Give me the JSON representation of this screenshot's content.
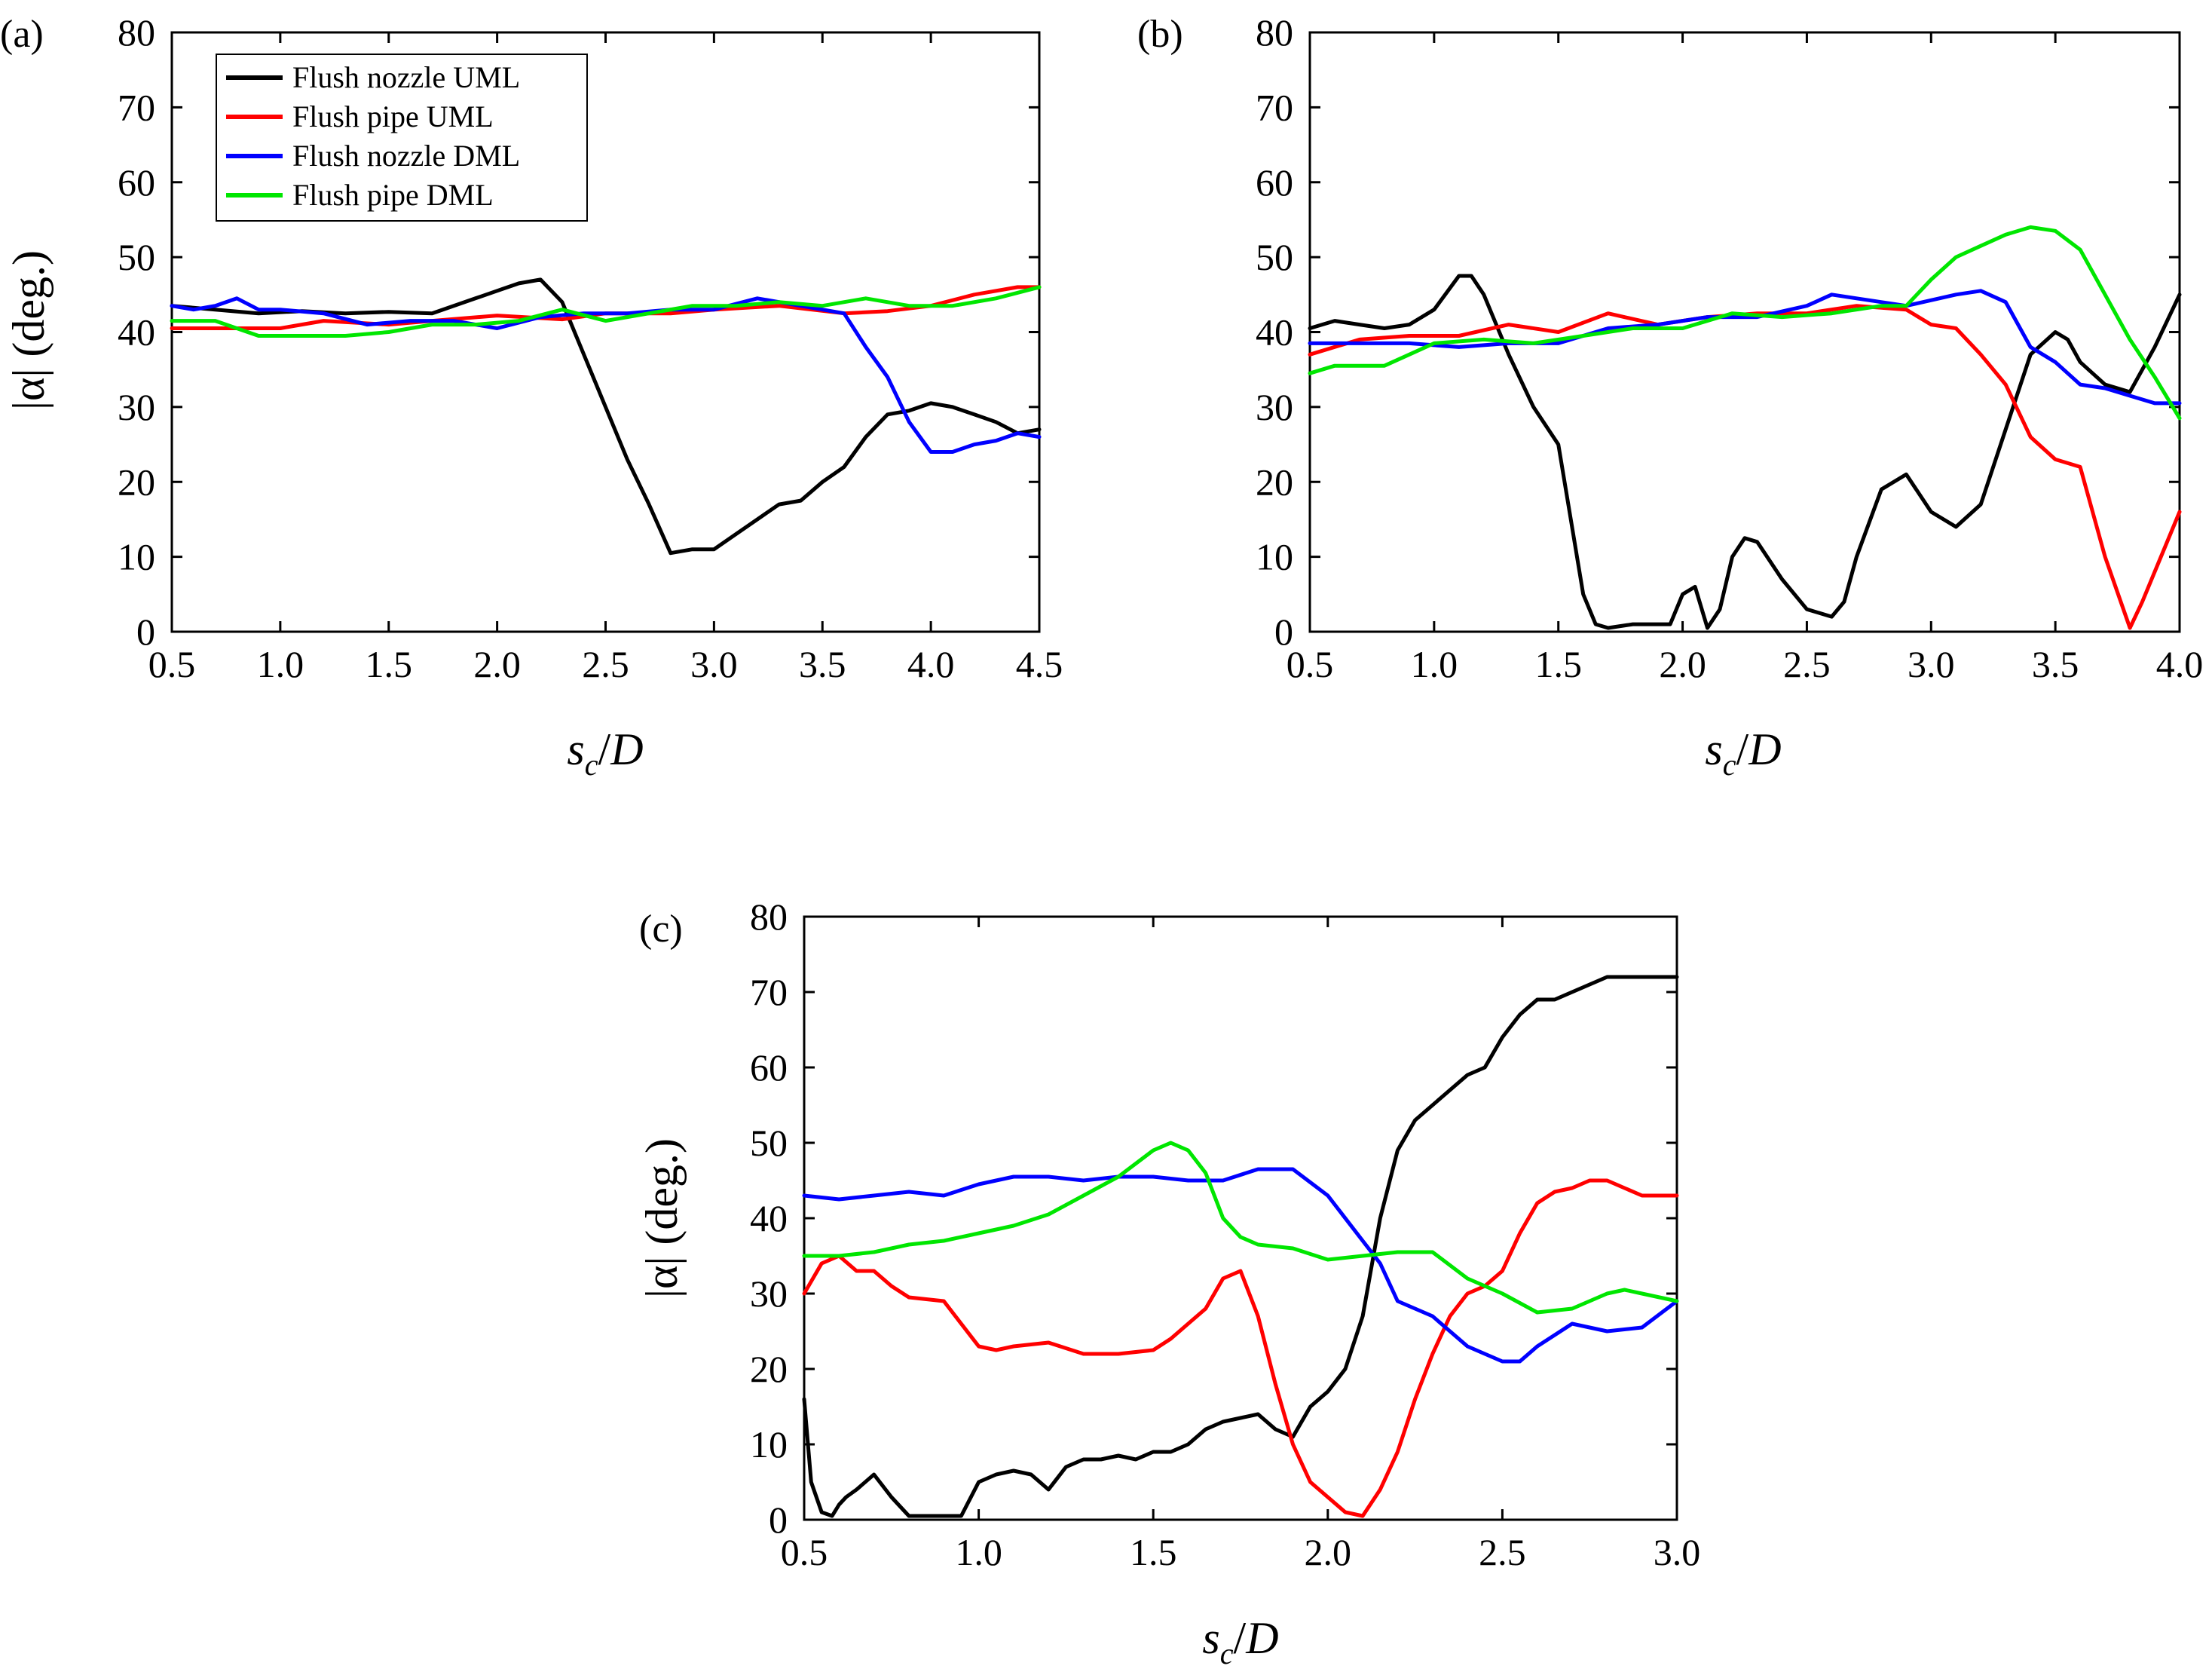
{
  "colors": {
    "uml_nozzle": "#000000",
    "uml_pipe": "#ff0000",
    "dml_nozzle": "#0000ff",
    "dml_pipe": "#00e600"
  },
  "legend": [
    "Flush nozzle UML",
    "Flush pipe UML",
    "Flush nozzle DML",
    "Flush pipe DML"
  ],
  "chart_data": [
    {
      "panel": "(a)",
      "type": "line",
      "xlabel": "s_c/D",
      "ylabel": "|α| (deg.)",
      "xlim": [
        0.5,
        4.5
      ],
      "ylim": [
        0,
        80
      ],
      "xticks": [
        "0.5",
        "1.0",
        "1.5",
        "2.0",
        "2.5",
        "3.0",
        "3.5",
        "4.0",
        "4.5"
      ],
      "yticks": [
        "0",
        "10",
        "20",
        "30",
        "40",
        "50",
        "60",
        "70",
        "80"
      ],
      "series": [
        {
          "name": "Flush nozzle UML",
          "color": "#000000",
          "x": [
            0.5,
            0.7,
            0.9,
            1.1,
            1.3,
            1.5,
            1.7,
            1.9,
            2.0,
            2.1,
            2.2,
            2.3,
            2.4,
            2.5,
            2.6,
            2.7,
            2.8,
            2.9,
            3.0,
            3.1,
            3.2,
            3.3,
            3.4,
            3.5,
            3.6,
            3.7,
            3.8,
            3.9,
            4.0,
            4.1,
            4.2,
            4.3,
            4.4,
            4.5
          ],
          "y": [
            43.5,
            43,
            42.5,
            42.8,
            42.5,
            42.7,
            42.5,
            44.5,
            45.5,
            46.5,
            47,
            44,
            37,
            30,
            23,
            17,
            10.5,
            11,
            11,
            13,
            15,
            17,
            17.5,
            20,
            22,
            26,
            29,
            29.5,
            30.5,
            30,
            29,
            28,
            26.5,
            27
          ]
        },
        {
          "name": "Flush pipe UML",
          "color": "#ff0000",
          "x": [
            0.5,
            0.8,
            1.0,
            1.2,
            1.5,
            1.7,
            2.0,
            2.3,
            2.5,
            2.8,
            3.0,
            3.3,
            3.6,
            3.8,
            4.0,
            4.2,
            4.4,
            4.5
          ],
          "y": [
            40.5,
            40.5,
            40.5,
            41.5,
            41,
            41.5,
            42.2,
            41.7,
            42.5,
            42.5,
            43,
            43.5,
            42.5,
            42.8,
            43.5,
            45,
            46,
            46
          ]
        },
        {
          "name": "Flush nozzle DML",
          "color": "#0000ff",
          "x": [
            0.5,
            0.6,
            0.7,
            0.8,
            0.9,
            1.0,
            1.2,
            1.4,
            1.6,
            1.8,
            2.0,
            2.2,
            2.4,
            2.6,
            2.8,
            3.0,
            3.2,
            3.4,
            3.6,
            3.7,
            3.8,
            3.9,
            4.0,
            4.1,
            4.2,
            4.3,
            4.4,
            4.5
          ],
          "y": [
            43.5,
            43,
            43.5,
            44.5,
            43,
            43,
            42.5,
            41,
            41.5,
            41.5,
            40.5,
            42,
            42.5,
            42.5,
            43,
            43,
            44.5,
            43.5,
            42.5,
            38,
            34,
            28,
            24,
            24,
            25,
            25.5,
            26.5,
            26
          ]
        },
        {
          "name": "Flush pipe DML",
          "color": "#00e600",
          "x": [
            0.5,
            0.7,
            0.9,
            1.1,
            1.3,
            1.5,
            1.7,
            1.9,
            2.1,
            2.3,
            2.5,
            2.7,
            2.9,
            3.1,
            3.3,
            3.5,
            3.7,
            3.9,
            4.1,
            4.3,
            4.5
          ],
          "y": [
            41.5,
            41.5,
            39.5,
            39.5,
            39.5,
            40,
            41,
            41,
            41.5,
            43,
            41.5,
            42.5,
            43.5,
            43.5,
            44,
            43.5,
            44.5,
            43.5,
            43.5,
            44.5,
            46
          ]
        }
      ]
    },
    {
      "panel": "(b)",
      "type": "line",
      "xlabel": "s_c/D",
      "ylabel": "|α| (deg.)",
      "xlim": [
        0.5,
        4.0
      ],
      "ylim": [
        0,
        80
      ],
      "xticks": [
        "0.5",
        "1.0",
        "1.5",
        "2.0",
        "2.5",
        "3.0",
        "3.5",
        "4.0"
      ],
      "yticks": [
        "0",
        "10",
        "20",
        "30",
        "40",
        "50",
        "60",
        "70",
        "80"
      ],
      "series": [
        {
          "name": "Flush nozzle UML",
          "color": "#000000",
          "x": [
            0.5,
            0.6,
            0.7,
            0.8,
            0.9,
            1.0,
            1.1,
            1.15,
            1.2,
            1.3,
            1.4,
            1.5,
            1.55,
            1.6,
            1.65,
            1.7,
            1.8,
            1.9,
            1.95,
            2.0,
            2.05,
            2.1,
            2.15,
            2.2,
            2.25,
            2.3,
            2.4,
            2.5,
            2.6,
            2.65,
            2.7,
            2.8,
            2.9,
            3.0,
            3.1,
            3.2,
            3.3,
            3.4,
            3.5,
            3.55,
            3.6,
            3.7,
            3.8,
            3.9,
            4.0
          ],
          "y": [
            40.5,
            41.5,
            41,
            40.5,
            41,
            43,
            47.5,
            47.5,
            45,
            37,
            30,
            25,
            15,
            5,
            1,
            0.5,
            1,
            1,
            1,
            5,
            6,
            0.5,
            3,
            10,
            12.5,
            12,
            7,
            3,
            2,
            4,
            10,
            19,
            21,
            16,
            14,
            17,
            27,
            37,
            40,
            39,
            36,
            33,
            32,
            38,
            45
          ]
        },
        {
          "name": "Flush pipe UML",
          "color": "#ff0000",
          "x": [
            0.5,
            0.7,
            0.9,
            1.1,
            1.3,
            1.5,
            1.7,
            1.9,
            2.1,
            2.3,
            2.5,
            2.7,
            2.9,
            3.0,
            3.1,
            3.2,
            3.3,
            3.4,
            3.5,
            3.6,
            3.7,
            3.8,
            3.85,
            3.9,
            4.0
          ],
          "y": [
            37,
            39,
            39.5,
            39.5,
            41,
            40,
            42.5,
            41,
            42,
            42.5,
            42.5,
            43.5,
            43,
            41,
            40.5,
            37,
            33,
            26,
            23,
            22,
            10,
            0.5,
            4,
            8,
            16
          ]
        },
        {
          "name": "Flush nozzle DML",
          "color": "#0000ff",
          "x": [
            0.5,
            0.7,
            0.9,
            1.1,
            1.3,
            1.5,
            1.7,
            1.9,
            2.1,
            2.3,
            2.5,
            2.6,
            2.7,
            2.9,
            3.1,
            3.2,
            3.3,
            3.4,
            3.5,
            3.6,
            3.7,
            3.8,
            3.9,
            4.0
          ],
          "y": [
            38.5,
            38.5,
            38.5,
            38,
            38.5,
            38.5,
            40.5,
            41,
            42,
            42,
            43.5,
            45,
            44.5,
            43.5,
            45,
            45.5,
            44,
            38,
            36,
            33,
            32.5,
            31.5,
            30.5,
            30.5
          ]
        },
        {
          "name": "Flush pipe DML",
          "color": "#00e600",
          "x": [
            0.5,
            0.6,
            0.7,
            0.8,
            0.9,
            1.0,
            1.2,
            1.4,
            1.6,
            1.8,
            2.0,
            2.2,
            2.4,
            2.6,
            2.8,
            2.9,
            3.0,
            3.1,
            3.2,
            3.3,
            3.4,
            3.5,
            3.6,
            3.7,
            3.8,
            3.9,
            4.0
          ],
          "y": [
            34.5,
            35.5,
            35.5,
            35.5,
            37,
            38.5,
            39,
            38.5,
            39.5,
            40.5,
            40.5,
            42.5,
            42,
            42.5,
            43.5,
            43.5,
            47,
            50,
            51.5,
            53,
            54,
            53.5,
            51,
            45,
            39,
            34,
            28.5
          ]
        }
      ]
    },
    {
      "panel": "(c)",
      "type": "line",
      "xlabel": "s_c/D",
      "ylabel": "|α| (deg.)",
      "xlim": [
        0.5,
        3.0
      ],
      "ylim": [
        0,
        80
      ],
      "xticks": [
        "0.5",
        "1.0",
        "1.5",
        "2.0",
        "2.5",
        "3.0"
      ],
      "yticks": [
        "0",
        "10",
        "20",
        "30",
        "40",
        "50",
        "60",
        "70",
        "80"
      ],
      "series": [
        {
          "name": "Flush nozzle UML",
          "color": "#000000",
          "x": [
            0.5,
            0.52,
            0.55,
            0.58,
            0.6,
            0.62,
            0.65,
            0.7,
            0.75,
            0.8,
            0.85,
            0.9,
            0.95,
            1.0,
            1.05,
            1.1,
            1.15,
            1.2,
            1.25,
            1.3,
            1.35,
            1.4,
            1.45,
            1.5,
            1.55,
            1.6,
            1.65,
            1.7,
            1.75,
            1.8,
            1.85,
            1.9,
            1.95,
            2.0,
            2.05,
            2.1,
            2.15,
            2.2,
            2.25,
            2.3,
            2.35,
            2.4,
            2.45,
            2.5,
            2.55,
            2.6,
            2.65,
            2.7,
            2.75,
            2.8,
            2.85,
            2.9,
            2.95,
            3.0
          ],
          "y": [
            16,
            5,
            1,
            0.5,
            2,
            3,
            4,
            6,
            3,
            0.5,
            0.5,
            0.5,
            0.5,
            5,
            6,
            6.5,
            6,
            4,
            7,
            8,
            8,
            8.5,
            8,
            9,
            9,
            10,
            12,
            13,
            13.5,
            14,
            12,
            11,
            15,
            17,
            20,
            27,
            40,
            49,
            53,
            55,
            57,
            59,
            60,
            64,
            67,
            69,
            69,
            70,
            71,
            72,
            72,
            72,
            72,
            72
          ]
        },
        {
          "name": "Flush pipe UML",
          "color": "#ff0000",
          "x": [
            0.5,
            0.55,
            0.6,
            0.65,
            0.7,
            0.75,
            0.8,
            0.9,
            0.95,
            1.0,
            1.05,
            1.1,
            1.2,
            1.3,
            1.4,
            1.5,
            1.55,
            1.6,
            1.65,
            1.7,
            1.75,
            1.8,
            1.85,
            1.9,
            1.95,
            2.0,
            2.05,
            2.1,
            2.15,
            2.2,
            2.25,
            2.3,
            2.35,
            2.4,
            2.45,
            2.5,
            2.55,
            2.6,
            2.65,
            2.7,
            2.75,
            2.8,
            2.85,
            2.9,
            2.95,
            3.0
          ],
          "y": [
            30,
            34,
            35,
            33,
            33,
            31,
            29.5,
            29,
            26,
            23,
            22.5,
            23,
            23.5,
            22,
            22,
            22.5,
            24,
            26,
            28,
            32,
            33,
            27,
            18,
            10,
            5,
            3,
            1,
            0.5,
            4,
            9,
            16,
            22,
            27,
            30,
            31,
            33,
            38,
            42,
            43.5,
            44,
            45,
            45,
            44,
            43,
            43,
            43
          ]
        },
        {
          "name": "Flush nozzle DML",
          "color": "#0000ff",
          "x": [
            0.5,
            0.6,
            0.7,
            0.8,
            0.9,
            1.0,
            1.1,
            1.2,
            1.3,
            1.4,
            1.5,
            1.6,
            1.7,
            1.8,
            1.9,
            2.0,
            2.1,
            2.15,
            2.2,
            2.25,
            2.3,
            2.35,
            2.4,
            2.45,
            2.5,
            2.55,
            2.6,
            2.7,
            2.8,
            2.9,
            3.0
          ],
          "y": [
            43,
            42.5,
            43,
            43.5,
            43,
            44.5,
            45.5,
            45.5,
            45,
            45.5,
            45.5,
            45,
            45,
            46.5,
            46.5,
            43,
            37,
            34,
            29,
            28,
            27,
            25,
            23,
            22,
            21,
            21,
            23,
            26,
            25,
            25.5,
            29
          ]
        },
        {
          "name": "Flush pipe DML",
          "color": "#00e600",
          "x": [
            0.5,
            0.6,
            0.7,
            0.8,
            0.9,
            1.0,
            1.1,
            1.2,
            1.3,
            1.4,
            1.5,
            1.55,
            1.6,
            1.65,
            1.7,
            1.75,
            1.8,
            1.9,
            2.0,
            2.1,
            2.2,
            2.3,
            2.4,
            2.5,
            2.6,
            2.7,
            2.8,
            2.85,
            2.9,
            3.0
          ],
          "y": [
            35,
            35,
            35.5,
            36.5,
            37,
            38,
            39,
            40.5,
            43,
            45.5,
            49,
            50,
            49,
            46,
            40,
            37.5,
            36.5,
            36,
            34.5,
            35,
            35.5,
            35.5,
            32,
            30,
            27.5,
            28,
            30,
            30.5,
            30,
            29
          ]
        }
      ]
    }
  ]
}
